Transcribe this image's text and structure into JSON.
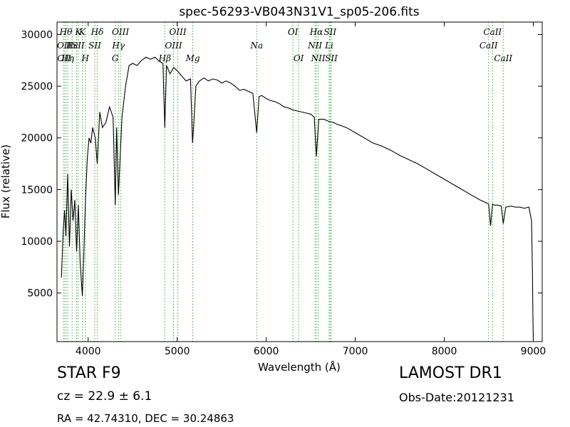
{
  "chart_data": {
    "type": "line",
    "title": "spec-56293-VB043N31V1_sp05-206.fits",
    "xlabel": "Wavelength (Å)",
    "ylabel": "Flux (relative)",
    "xlim": [
      3650,
      9100
    ],
    "ylim": [
      300,
      31200
    ],
    "xticks": [
      4000,
      5000,
      6000,
      7000,
      8000,
      9000
    ],
    "yticks": [
      5000,
      10000,
      15000,
      20000,
      25000,
      30000
    ],
    "grid": false,
    "line_color": "#000000",
    "marker_color": "#33aa33",
    "spectrum": {
      "x": [
        3700,
        3720,
        3735,
        3750,
        3770,
        3790,
        3810,
        3830,
        3850,
        3870,
        3890,
        3910,
        3935,
        3950,
        3970,
        3990,
        4010,
        4030,
        4050,
        4080,
        4102,
        4130,
        4160,
        4200,
        4240,
        4280,
        4305,
        4320,
        4340,
        4380,
        4420,
        4460,
        4500,
        4550,
        4600,
        4650,
        4700,
        4750,
        4800,
        4840,
        4861,
        4880,
        4920,
        4960,
        5000,
        5050,
        5100,
        5150,
        5172,
        5184,
        5210,
        5250,
        5300,
        5350,
        5400,
        5450,
        5500,
        5550,
        5600,
        5650,
        5700,
        5750,
        5800,
        5850,
        5893,
        5920,
        5950,
        6000,
        6050,
        6100,
        6150,
        6200,
        6250,
        6300,
        6350,
        6400,
        6450,
        6500,
        6540,
        6563,
        6590,
        6650,
        6700,
        6750,
        6800,
        6900,
        7000,
        7100,
        7200,
        7300,
        7400,
        7500,
        7600,
        7700,
        7800,
        7900,
        8000,
        8100,
        8200,
        8300,
        8400,
        8450,
        8498,
        8520,
        8542,
        8560,
        8600,
        8640,
        8662,
        8690,
        8750,
        8800,
        8850,
        8900,
        8950,
        8980,
        8990,
        8995,
        9000
      ],
      "y": [
        6500,
        11000,
        13000,
        10500,
        16500,
        9500,
        15000,
        12000,
        14000,
        9000,
        13500,
        8000,
        4700,
        8500,
        14000,
        18000,
        20000,
        19500,
        21000,
        20000,
        17500,
        22500,
        21000,
        21500,
        23000,
        22000,
        13500,
        21000,
        14500,
        22000,
        25000,
        27000,
        27200,
        27000,
        27500,
        27800,
        27600,
        27800,
        27400,
        27200,
        21000,
        27000,
        26200,
        26800,
        26500,
        26000,
        25500,
        25700,
        19500,
        21000,
        25000,
        25500,
        25800,
        25500,
        25700,
        25600,
        25300,
        25500,
        25300,
        25000,
        24600,
        24700,
        24500,
        24300,
        20500,
        24000,
        24100,
        23800,
        23600,
        23500,
        23300,
        23000,
        22900,
        22700,
        22600,
        22500,
        22400,
        22300,
        22000,
        18200,
        21800,
        21800,
        21600,
        21500,
        21300,
        21000,
        20500,
        20000,
        19500,
        19200,
        18800,
        18300,
        17900,
        17500,
        17000,
        16500,
        16000,
        15500,
        15000,
        14500,
        14000,
        13800,
        13600,
        11500,
        13600,
        13500,
        13500,
        13400,
        11700,
        13300,
        13400,
        13300,
        13300,
        13200,
        13300,
        12000,
        7000,
        3000,
        400
      ]
    },
    "line_markers": [
      {
        "x": 3727,
        "label": "OII",
        "row": 2
      },
      {
        "x": 3730,
        "label": "OII",
        "row": 3
      },
      {
        "x": 3750,
        "label": "Hθ",
        "row": 1
      },
      {
        "x": 3771,
        "label": "Hη",
        "row": 3
      },
      {
        "x": 3820,
        "label": "Hc",
        "row": 2
      },
      {
        "x": 3870,
        "label": "ISII",
        "row": 2
      },
      {
        "x": 3889,
        "label": "K",
        "row": 1
      },
      {
        "x": 3934,
        "label": "K",
        "row": 1
      },
      {
        "x": 3968,
        "label": "H",
        "row": 3
      },
      {
        "x": 4074,
        "label": "SII",
        "row": 2
      },
      {
        "x": 4102,
        "label": "Hδ",
        "row": 1
      },
      {
        "x": 4304,
        "label": "G",
        "row": 3
      },
      {
        "x": 4340,
        "label": "Hγ",
        "row": 2
      },
      {
        "x": 4363,
        "label": "OIII",
        "row": 1
      },
      {
        "x": 4861,
        "label": "Hβ",
        "row": 3
      },
      {
        "x": 4959,
        "label": "OIII",
        "row": 2
      },
      {
        "x": 5007,
        "label": "OIII",
        "row": 1
      },
      {
        "x": 5175,
        "label": "Mg",
        "row": 3
      },
      {
        "x": 5893,
        "label": "Na",
        "row": 2
      },
      {
        "x": 6300,
        "label": "OI",
        "row": 1
      },
      {
        "x": 6364,
        "label": "OI",
        "row": 3
      },
      {
        "x": 6548,
        "label": "NII",
        "row": 2
      },
      {
        "x": 6563,
        "label": "Hα",
        "row": 1
      },
      {
        "x": 6584,
        "label": "NII",
        "row": 3
      },
      {
        "x": 6707,
        "label": "Li",
        "row": 2
      },
      {
        "x": 6717,
        "label": "SII",
        "row": 1
      },
      {
        "x": 6731,
        "label": "SII",
        "row": 3
      },
      {
        "x": 8498,
        "label": "CaII",
        "row": 2
      },
      {
        "x": 8542,
        "label": "CaII",
        "row": 1
      },
      {
        "x": 8662,
        "label": "CaII",
        "row": 3
      }
    ]
  },
  "info": {
    "object_class": "STAR   F9",
    "redshift": "cz = 22.9  ± 6.1",
    "coordinates": "RA = 42.74310, DEC = 30.24863",
    "survey": "LAMOST DR1",
    "obs_date": "Obs-Date:20121231"
  }
}
